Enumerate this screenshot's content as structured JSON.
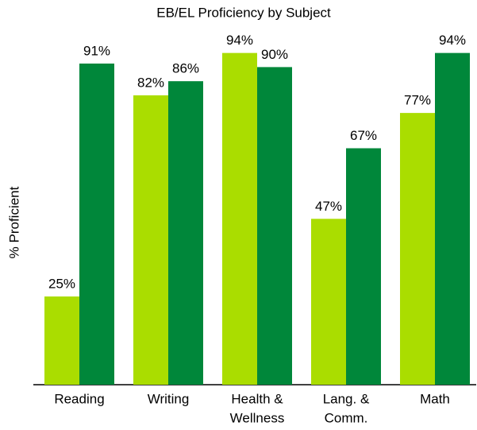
{
  "chart_data": {
    "type": "bar",
    "title": "EB/EL Proficiency by Subject",
    "y_label": "% Proficient",
    "categories": [
      [
        "Reading"
      ],
      [
        "Writing"
      ],
      [
        "Health &",
        "Wellness"
      ],
      [
        "Lang. &",
        "Comm."
      ],
      [
        "Math"
      ]
    ],
    "series": [
      {
        "color": "#aadd00",
        "values": [
          25,
          82,
          94,
          47,
          77
        ],
        "value_labels": [
          "25%",
          "82%",
          "94%",
          "47%",
          "77%"
        ]
      },
      {
        "color": "#00873a",
        "values": [
          91,
          86,
          90,
          67,
          94
        ],
        "value_labels": [
          "91%",
          "86%",
          "90%",
          "67%",
          "94%"
        ]
      }
    ],
    "ylim": [
      0,
      100
    ]
  }
}
